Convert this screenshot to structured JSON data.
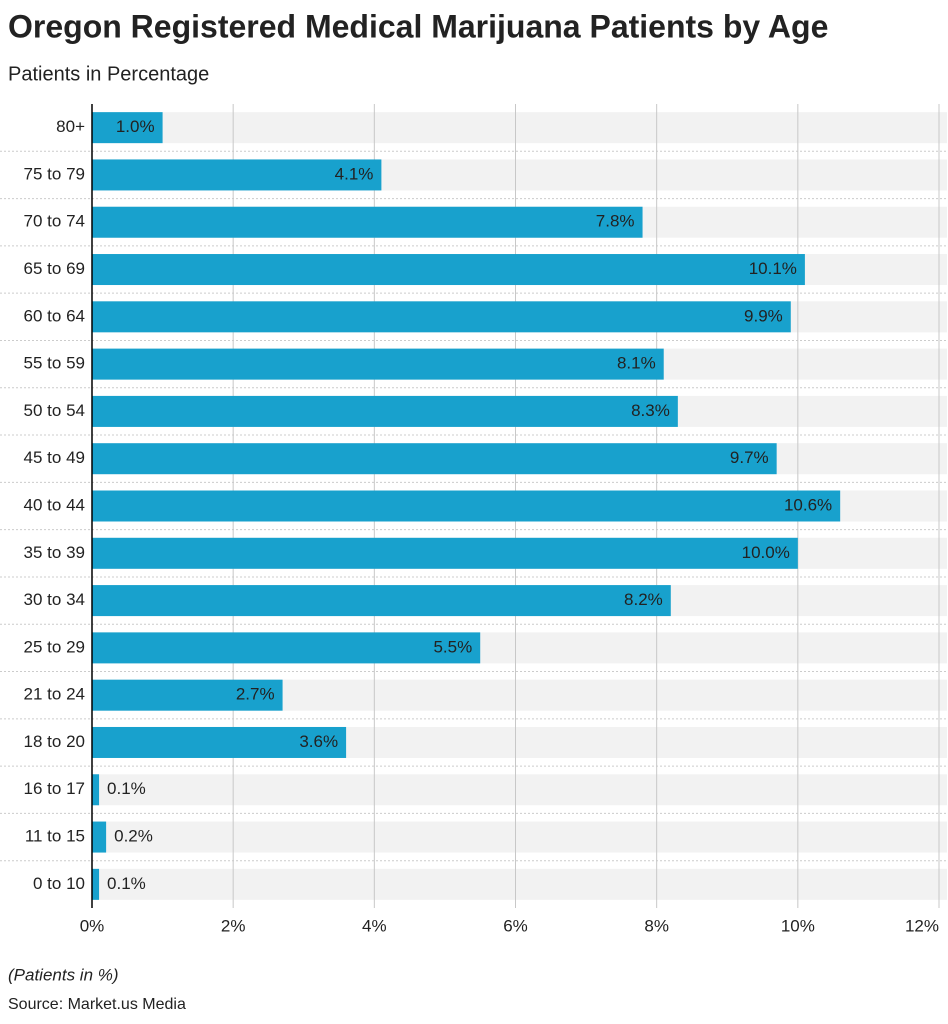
{
  "chart_data": {
    "type": "bar",
    "orientation": "horizontal",
    "title": "Oregon Registered Medical Marijuana Patients by Age",
    "subtitle": "Patients in Percentage",
    "categories": [
      "80+",
      "75 to 79",
      "70 to 74",
      "65 to 69",
      "60 to 64",
      "55 to 59",
      "50 to 54",
      "45 to 49",
      "40 to 44",
      "35 to 39",
      "30 to 34",
      "25 to 29",
      "21 to 24",
      "18 to 20",
      "16 to 17",
      "11 to 15",
      "0 to 10"
    ],
    "values": [
      1.0,
      4.1,
      7.8,
      10.1,
      9.9,
      8.1,
      8.3,
      9.7,
      10.6,
      10.0,
      8.2,
      5.5,
      2.7,
      3.6,
      0.1,
      0.2,
      0.1
    ],
    "value_labels": [
      "1.0%",
      "4.1%",
      "7.8%",
      "10.1%",
      "9.9%",
      "8.1%",
      "8.3%",
      "9.7%",
      "10.6%",
      "10.0%",
      "8.2%",
      "5.5%",
      "2.7%",
      "3.6%",
      "0.1%",
      "0.2%",
      "0.1%"
    ],
    "color": "#18a1cd",
    "xlim": [
      0,
      12
    ],
    "xticks": [
      {
        "value": 0,
        "label": "0%"
      },
      {
        "value": 2,
        "label": "2%"
      },
      {
        "value": 4,
        "label": "4%"
      },
      {
        "value": 6,
        "label": "6%"
      },
      {
        "value": 8,
        "label": "8%"
      },
      {
        "value": 10,
        "label": "10%"
      },
      {
        "value": 12,
        "label": "12%"
      }
    ],
    "grid": true,
    "note": "(Patients in %)",
    "source": "Source: Market.us Media"
  }
}
